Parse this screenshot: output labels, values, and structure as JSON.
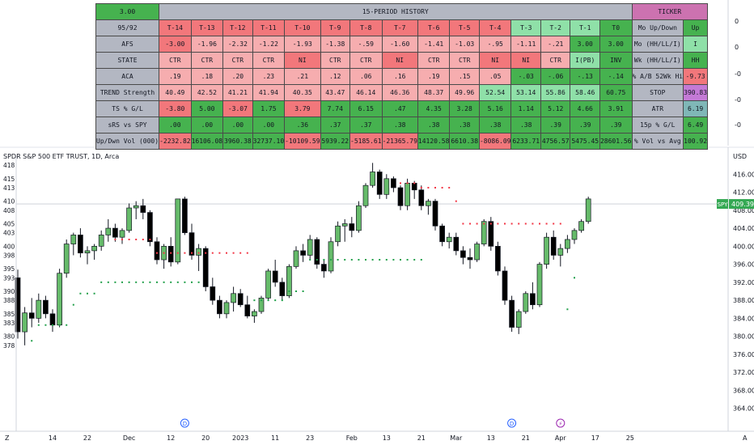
{
  "chart_header": {
    "symbol_line": "SPDR S&P 500 ETF TRUST, 1D, Arca",
    "currency": "USD",
    "price_tag_symbol": "SPY",
    "price_tag_value": "409.39"
  },
  "table": {
    "top_left": "3.00",
    "history_title": "15-PERIOD HISTORY",
    "ticker_title": "TICKER",
    "rows": [
      {
        "label": "95/92",
        "cells": [
          "T-14",
          "T-13",
          "T-12",
          "T-11",
          "T-10",
          "T-9",
          "T-8",
          "T-7",
          "T-6",
          "T-5",
          "T-4",
          "T-3",
          "T-2",
          "T-1",
          "T0"
        ],
        "colors": [
          "#f2777b",
          "#f2777b",
          "#f2777b",
          "#f2777b",
          "#f2777b",
          "#f2777b",
          "#f2777b",
          "#f2777b",
          "#f2777b",
          "#f2777b",
          "#f2777b",
          "#8fe0a8",
          "#8fe0a8",
          "#8fe0a8",
          "#46b24f"
        ],
        "info_label": "Mo Up/Down",
        "info_value": "Up",
        "info_color": "#46b24f"
      },
      {
        "label": "AFS",
        "cells": [
          "-3.00",
          "-1.96",
          "-2.32",
          "-1.22",
          "-1.93",
          "-1.38",
          "-.59",
          "-1.60",
          "-1.41",
          "-1.03",
          "-.95",
          "-1.11",
          "-.21",
          "3.00",
          "3.00"
        ],
        "colors": [
          "#f2777b",
          "#f6adaf",
          "#f6adaf",
          "#f6adaf",
          "#f6adaf",
          "#f6adaf",
          "#f6adaf",
          "#f6adaf",
          "#f6adaf",
          "#f6adaf",
          "#f6adaf",
          "#f6adaf",
          "#f6adaf",
          "#46b24f",
          "#46b24f"
        ],
        "info_label": "Mo (HH/LL/I)",
        "info_value": "I",
        "info_color": "#8fe0a8"
      },
      {
        "label": "STATE",
        "cells": [
          "CTR",
          "CTR",
          "CTR",
          "CTR",
          "NI",
          "CTR",
          "CTR",
          "NI",
          "CTR",
          "CTR",
          "NI",
          "NI",
          "CTR",
          "I(PB)",
          "INV"
        ],
        "colors": [
          "#f6adaf",
          "#f6adaf",
          "#f6adaf",
          "#f6adaf",
          "#f2777b",
          "#f6adaf",
          "#f6adaf",
          "#f2777b",
          "#f6adaf",
          "#f6adaf",
          "#f2777b",
          "#f2777b",
          "#f6adaf",
          "#8fe0a8",
          "#46b24f"
        ],
        "info_label": "Wk (HH/LL/I)",
        "info_value": "HH",
        "info_color": "#46b24f"
      },
      {
        "label": "ACA",
        "cells": [
          ".19",
          ".18",
          ".20",
          ".23",
          ".21",
          ".12",
          ".06",
          ".16",
          ".19",
          ".15",
          ".05",
          "-.03",
          "-.06",
          "-.13",
          "-.14"
        ],
        "colors": [
          "#f6adaf",
          "#f6adaf",
          "#f6adaf",
          "#f6adaf",
          "#f6adaf",
          "#f6adaf",
          "#f6adaf",
          "#f6adaf",
          "#f6adaf",
          "#f6adaf",
          "#f6adaf",
          "#46b24f",
          "#46b24f",
          "#46b24f",
          "#46b24f"
        ],
        "info_label": "% A/B 52Wk Hi",
        "info_value": "-9.73",
        "info_color": "#f2777b"
      },
      {
        "label": "TREND Strength",
        "cells": [
          "40.49",
          "42.52",
          "41.21",
          "41.94",
          "40.35",
          "43.47",
          "46.14",
          "46.36",
          "48.37",
          "49.96",
          "52.54",
          "53.14",
          "55.86",
          "58.46",
          "60.75"
        ],
        "colors": [
          "#f6adaf",
          "#f6adaf",
          "#f6adaf",
          "#f6adaf",
          "#f6adaf",
          "#f6adaf",
          "#f6adaf",
          "#f6adaf",
          "#f6adaf",
          "#f6adaf",
          "#8fe0a8",
          "#8fe0a8",
          "#8fe0a8",
          "#8fe0a8",
          "#46b24f"
        ],
        "info_label": "STOP",
        "info_value": "390.83",
        "info_color": "#c47ad6"
      },
      {
        "label": "TS % G/L",
        "cells": [
          "-3.80",
          "5.00",
          "-3.07",
          "1.75",
          "3.79",
          "7.74",
          "6.15",
          ".47",
          "4.35",
          "3.28",
          "5.16",
          "1.14",
          "5.12",
          "4.66",
          "3.91"
        ],
        "colors": [
          "#f2777b",
          "#46b24f",
          "#f2777b",
          "#46b24f",
          "#f2777b",
          "#46b24f",
          "#46b24f",
          "#46b24f",
          "#46b24f",
          "#46b24f",
          "#46b24f",
          "#46b24f",
          "#46b24f",
          "#46b24f",
          "#46b24f"
        ],
        "info_label": "ATR",
        "info_value": "6.19",
        "info_color": "#7fb7b7"
      },
      {
        "label": "sRS vs SPY",
        "cells": [
          ".00",
          ".00",
          ".00",
          ".00",
          ".36",
          ".37",
          ".37",
          ".38",
          ".38",
          ".38",
          ".38",
          ".38",
          ".39",
          ".39",
          ".39"
        ],
        "colors": [
          "#46b24f",
          "#46b24f",
          "#46b24f",
          "#46b24f",
          "#46b24f",
          "#46b24f",
          "#46b24f",
          "#46b24f",
          "#46b24f",
          "#46b24f",
          "#46b24f",
          "#46b24f",
          "#46b24f",
          "#46b24f",
          "#46b24f"
        ],
        "info_label": "15p % G/L",
        "info_value": "6.49",
        "info_color": "#46b24f"
      },
      {
        "label": "Up/Dwn Vol (000)",
        "cells": [
          "-2232.82",
          "16106.08",
          "3960.38",
          "32737.10",
          "-10109.59",
          "5939.22",
          "-5185.61",
          "-21365.79",
          "14120.58",
          "6610.38",
          "-8086.09",
          "6233.71",
          "4756.57",
          "5475.45",
          "28601.56"
        ],
        "colors": [
          "#f2777b",
          "#46b24f",
          "#46b24f",
          "#46b24f",
          "#f2777b",
          "#46b24f",
          "#f2777b",
          "#f2777b",
          "#46b24f",
          "#46b24f",
          "#f2777b",
          "#46b24f",
          "#46b24f",
          "#46b24f",
          "#46b24f"
        ],
        "info_label": "% Vol vs Avg",
        "info_value": "100.92",
        "info_color": "#46b24f"
      }
    ]
  },
  "top_axis_labels": [
    "0",
    "0",
    "-0",
    "-0",
    "-0"
  ],
  "chart_data": {
    "type": "candlestick",
    "ylim": [
      360,
      420
    ],
    "y_ticks_right": [
      364,
      368,
      372,
      376,
      380,
      384,
      388,
      392,
      396,
      400,
      404,
      408,
      412,
      416
    ],
    "y_ticks_right_labels": [
      "364.00",
      "368.00",
      "372.00",
      "376.00",
      "380.00",
      "384.00",
      "388.00",
      "392.00",
      "396.00",
      "400.00",
      "404.00",
      "408.00",
      "412.00",
      "416.00"
    ],
    "y_ticks_left": [
      378,
      380,
      383,
      385,
      388,
      390,
      393,
      395,
      398,
      400,
      403,
      405,
      408,
      410,
      413,
      415,
      418
    ],
    "x_tick_labels": [
      {
        "i": 5,
        "label": "14"
      },
      {
        "i": 10,
        "label": "22"
      },
      {
        "i": 16,
        "label": "Dec"
      },
      {
        "i": 22,
        "label": "12"
      },
      {
        "i": 27,
        "label": "20"
      },
      {
        "i": 32,
        "label": "2023"
      },
      {
        "i": 37,
        "label": "11"
      },
      {
        "i": 42,
        "label": "23"
      },
      {
        "i": 48,
        "label": "Feb"
      },
      {
        "i": 53,
        "label": "13"
      },
      {
        "i": 58,
        "label": "21"
      },
      {
        "i": 63,
        "label": "Mar"
      },
      {
        "i": 68,
        "label": "13"
      },
      {
        "i": 73,
        "label": "21"
      },
      {
        "i": 78,
        "label": "Apr"
      },
      {
        "i": 83,
        "label": "17"
      },
      {
        "i": 88,
        "label": "25"
      }
    ],
    "ohlc": [
      [
        393.0,
        394.8,
        379.5,
        381.0
      ],
      [
        381.0,
        386.5,
        378.0,
        385.2
      ],
      [
        385.2,
        388.5,
        382.0,
        384.0
      ],
      [
        384.0,
        389.5,
        383.0,
        388.0
      ],
      [
        388.0,
        389.0,
        384.0,
        385.0
      ],
      [
        385.0,
        386.0,
        381.0,
        382.5
      ],
      [
        382.5,
        395.0,
        382.0,
        394.0
      ],
      [
        394.0,
        401.5,
        393.0,
        400.5
      ],
      [
        400.5,
        403.0,
        398.0,
        402.5
      ],
      [
        402.5,
        404.0,
        397.5,
        398.5
      ],
      [
        398.5,
        400.0,
        396.0,
        399.0
      ],
      [
        399.0,
        400.5,
        397.0,
        400.0
      ],
      [
        400.0,
        403.5,
        399.0,
        402.5
      ],
      [
        402.5,
        406.0,
        401.0,
        404.0
      ],
      [
        404.0,
        405.0,
        401.0,
        402.0
      ],
      [
        402.0,
        404.0,
        400.5,
        403.5
      ],
      [
        403.5,
        409.5,
        403.0,
        408.5
      ],
      [
        408.5,
        410.0,
        406.0,
        409.0
      ],
      [
        409.0,
        410.5,
        406.0,
        407.5
      ],
      [
        407.5,
        408.0,
        400.0,
        401.0
      ],
      [
        401.0,
        402.0,
        396.0,
        397.0
      ],
      [
        397.0,
        400.5,
        395.0,
        400.0
      ],
      [
        400.0,
        402.0,
        395.5,
        396.5
      ],
      [
        396.5,
        410.5,
        396.0,
        410.5
      ],
      [
        410.5,
        411.0,
        402.5,
        403.0
      ],
      [
        403.0,
        405.0,
        397.0,
        398.0
      ],
      [
        398.0,
        400.5,
        394.5,
        399.5
      ],
      [
        399.5,
        400.0,
        390.0,
        391.0
      ],
      [
        391.0,
        393.0,
        387.0,
        388.0
      ],
      [
        388.0,
        389.0,
        384.0,
        385.0
      ],
      [
        385.0,
        388.0,
        384.0,
        387.5
      ],
      [
        387.5,
        391.0,
        385.5,
        389.5
      ],
      [
        389.5,
        390.5,
        386.5,
        387.0
      ],
      [
        387.0,
        389.0,
        384.0,
        384.5
      ],
      [
        384.5,
        386.0,
        383.0,
        385.5
      ],
      [
        385.5,
        389.0,
        385.0,
        388.5
      ],
      [
        388.5,
        395.0,
        388.0,
        394.5
      ],
      [
        394.5,
        397.0,
        391.0,
        392.0
      ],
      [
        392.0,
        393.0,
        388.0,
        389.0
      ],
      [
        389.0,
        396.0,
        388.5,
        395.5
      ],
      [
        395.5,
        400.0,
        395.0,
        399.0
      ],
      [
        399.0,
        400.5,
        396.5,
        398.0
      ],
      [
        398.0,
        402.5,
        397.0,
        401.5
      ],
      [
        401.5,
        402.0,
        395.0,
        396.0
      ],
      [
        396.0,
        397.0,
        393.0,
        394.5
      ],
      [
        394.5,
        402.0,
        394.0,
        401.0
      ],
      [
        401.0,
        405.5,
        400.0,
        404.5
      ],
      [
        404.5,
        406.0,
        401.0,
        405.0
      ],
      [
        405.0,
        406.5,
        402.0,
        403.5
      ],
      [
        403.5,
        410.0,
        403.0,
        409.0
      ],
      [
        409.0,
        414.0,
        408.5,
        413.5
      ],
      [
        413.5,
        418.5,
        413.0,
        416.5
      ],
      [
        416.5,
        417.0,
        410.5,
        411.5
      ],
      [
        411.5,
        416.0,
        410.5,
        415.0
      ],
      [
        415.0,
        415.5,
        412.0,
        413.0
      ],
      [
        413.0,
        413.5,
        408.0,
        409.0
      ],
      [
        409.0,
        415.0,
        408.0,
        414.0
      ],
      [
        414.0,
        414.5,
        410.5,
        412.5
      ],
      [
        412.5,
        413.5,
        408.0,
        409.0
      ],
      [
        409.0,
        410.5,
        407.0,
        410.0
      ],
      [
        410.0,
        410.5,
        403.5,
        404.5
      ],
      [
        404.5,
        405.0,
        400.0,
        401.0
      ],
      [
        401.0,
        403.0,
        399.5,
        402.0
      ],
      [
        402.0,
        403.0,
        398.0,
        399.0
      ],
      [
        399.0,
        400.0,
        396.0,
        397.5
      ],
      [
        397.5,
        399.5,
        395.0,
        397.0
      ],
      [
        397.0,
        401.0,
        396.5,
        400.5
      ],
      [
        400.5,
        406.0,
        400.0,
        405.5
      ],
      [
        405.5,
        406.5,
        399.0,
        400.0
      ],
      [
        400.0,
        401.0,
        393.5,
        394.5
      ],
      [
        394.5,
        395.5,
        387.0,
        388.0
      ],
      [
        388.0,
        389.0,
        381.0,
        382.0
      ],
      [
        382.0,
        386.0,
        380.5,
        385.5
      ],
      [
        385.5,
        390.0,
        385.0,
        389.5
      ],
      [
        389.5,
        392.0,
        386.0,
        387.0
      ],
      [
        387.0,
        396.5,
        386.5,
        396.0
      ],
      [
        396.0,
        403.0,
        395.0,
        402.0
      ],
      [
        402.0,
        403.5,
        397.0,
        398.0
      ],
      [
        398.0,
        400.5,
        395.5,
        399.5
      ],
      [
        399.5,
        402.5,
        398.5,
        401.5
      ],
      [
        401.5,
        404.0,
        400.5,
        403.5
      ],
      [
        403.5,
        406.0,
        403.0,
        405.5
      ],
      [
        405.5,
        411.0,
        405.0,
        410.5
      ]
    ],
    "markers": [
      {
        "i": 2,
        "y": 379.0,
        "color": "green"
      },
      {
        "range": [
          3,
          7
        ],
        "y": 382.5,
        "color": "green"
      },
      {
        "i": 8,
        "y": 387.0,
        "color": "green"
      },
      {
        "range": [
          9,
          11
        ],
        "y": 389.5,
        "color": "green"
      },
      {
        "range": [
          12,
          26
        ],
        "y": 392.0,
        "color": "green"
      },
      {
        "range": [
          14,
          19
        ],
        "y": 401.5,
        "color": "red"
      },
      {
        "range": [
          20,
          33
        ],
        "y": 398.5,
        "color": "red"
      },
      {
        "range": [
          34,
          38
        ],
        "y": 388.0,
        "color": "green"
      },
      {
        "range": [
          39,
          41
        ],
        "y": 390.0,
        "color": "green"
      },
      {
        "range": [
          42,
          58
        ],
        "y": 397.0,
        "color": "green"
      },
      {
        "range": [
          55,
          57
        ],
        "y": 414.0,
        "color": "red"
      },
      {
        "range": [
          58,
          62
        ],
        "y": 413.0,
        "color": "red"
      },
      {
        "i": 63,
        "y": 410.0,
        "color": "red"
      },
      {
        "range": [
          64,
          78
        ],
        "y": 405.0,
        "color": "red"
      },
      {
        "i": 80,
        "y": 393.0,
        "color": "green"
      },
      {
        "i": 79,
        "y": 386.0,
        "color": "green"
      }
    ],
    "events": [
      {
        "i": 24,
        "symbol": "D"
      },
      {
        "i": 71,
        "symbol": "D"
      },
      {
        "i": 78,
        "symbol": "⚡"
      }
    ],
    "last_price": 409.39
  }
}
